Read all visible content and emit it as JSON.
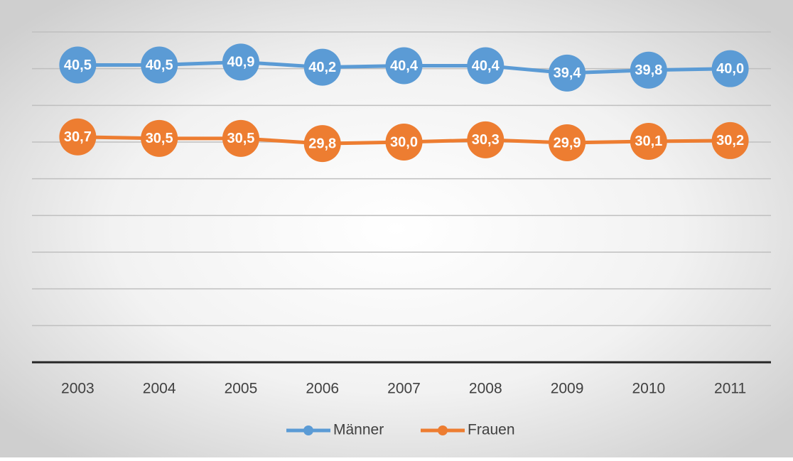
{
  "chart_data": {
    "type": "line",
    "categories": [
      "2003",
      "2004",
      "2005",
      "2006",
      "2007",
      "2008",
      "2009",
      "2010",
      "2011"
    ],
    "series": [
      {
        "name": "Männer",
        "color": "#5b9bd5",
        "values": [
          40.5,
          40.5,
          40.9,
          40.2,
          40.4,
          40.4,
          39.4,
          39.8,
          40.0
        ],
        "value_labels": [
          "40,5",
          "40,5",
          "40,9",
          "40,2",
          "40,4",
          "40,4",
          "39,4",
          "39,8",
          "40,0"
        ]
      },
      {
        "name": "Frauen",
        "color": "#ed7d31",
        "values": [
          30.7,
          30.5,
          30.5,
          29.8,
          30.0,
          30.3,
          29.9,
          30.1,
          30.2
        ],
        "value_labels": [
          "30,7",
          "30,5",
          "30,5",
          "29,8",
          "30,0",
          "30,3",
          "29,9",
          "30,1",
          "30,2"
        ]
      }
    ],
    "ylim": [
      0,
      45
    ],
    "yticks": [
      0,
      5,
      10,
      15,
      20,
      25,
      30,
      35,
      40,
      45
    ],
    "grid": true,
    "legend": "bottom"
  }
}
